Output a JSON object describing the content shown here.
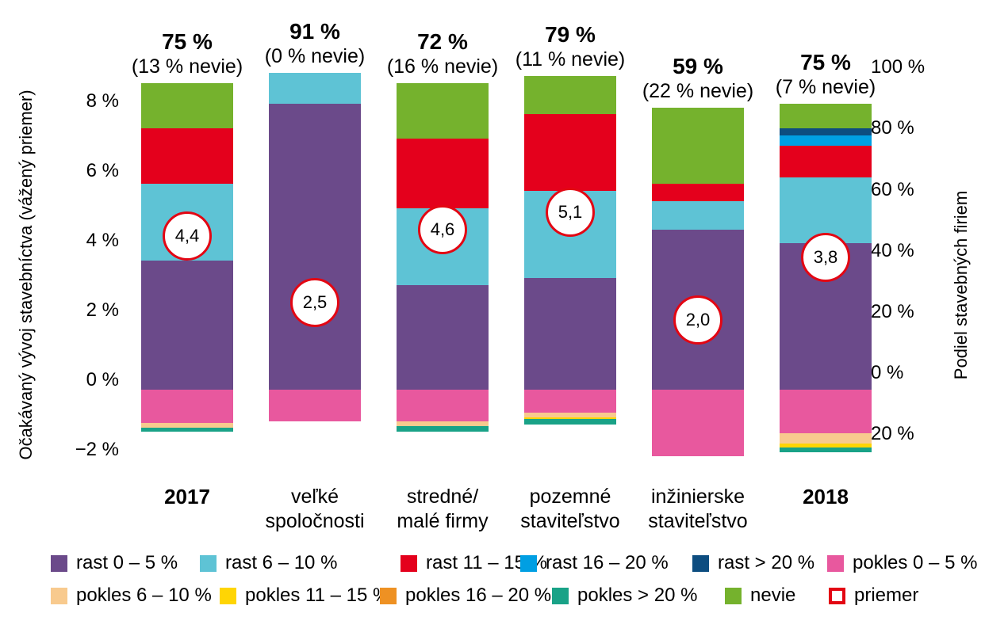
{
  "axes": {
    "left": {
      "title": "Očakávaný vývoj stavebníctva (vážený priemer)",
      "ticks": [
        "8 %",
        "6 %",
        "4 %",
        "2 %",
        "0 %",
        "−2 %"
      ]
    },
    "right": {
      "title": "Podiel stavebných firiem",
      "ticks": [
        "100 %",
        "80 %",
        "60 %",
        "40 %",
        "20 %",
        "0 %",
        "20 %"
      ]
    }
  },
  "colors": {
    "rast_0_5": "#6b4a8a",
    "rast_6_10": "#5ec3d5",
    "rast_11_15": "#e4001c",
    "rast_16_20": "#009fe3",
    "rast_gt_20": "#0d4d80",
    "pokles_0_5": "#e8589e",
    "pokles_6_10": "#f8ca8e",
    "pokles_11_15": "#ffd504",
    "pokles_16_20": "#ee9123",
    "pokles_gt_20": "#19a287",
    "nevie": "#75b22d",
    "priemer_border": "#e30613"
  },
  "series_labels": {
    "rast_0_5": "rast 0 – 5 %",
    "rast_6_10": "rast 6 – 10 %",
    "rast_11_15": "rast 11 – 15 %",
    "rast_16_20": "rast 16 – 20 %",
    "rast_gt_20": "rast > 20 %",
    "pokles_0_5": "pokles 0 – 5 %",
    "pokles_6_10": "pokles 6 – 10 %",
    "pokles_11_15": "pokles 11 – 15 %",
    "pokles_16_20": "pokles 16 – 20 %",
    "pokles_gt_20": "pokles > 20 %",
    "nevie": "nevie",
    "priemer": "priemer"
  },
  "legend": {
    "rows": [
      [
        "rast_0_5",
        "rast_6_10",
        "rast_11_15",
        "rast_16_20",
        "rast_gt_20",
        "pokles_0_5"
      ],
      [
        "pokles_6_10",
        "pokles_11_15",
        "pokles_16_20",
        "pokles_gt_20",
        "nevie",
        "priemer"
      ]
    ]
  },
  "chart_data": {
    "type": "stacked-bar-diverging",
    "unit_bars": "percent of construction firms (right axis)",
    "unit_averages": "weighted average expected growth % (left axis)",
    "categories": [
      [
        "2017"
      ],
      [
        "veľké",
        "spoločnosti"
      ],
      [
        "stredné/",
        "malé firmy"
      ],
      [
        "pozemné",
        "staviteľstvo"
      ],
      [
        "inžinierske",
        "staviteľstvo"
      ],
      [
        "2018"
      ]
    ],
    "category_bold": [
      true,
      false,
      false,
      false,
      false,
      true
    ],
    "totals": [
      "75 %",
      "91 %",
      "72 %",
      "79 %",
      "59 %",
      "75 %"
    ],
    "nevie_notes": [
      "(13 % nevie)",
      "(0 % nevie)",
      "(16 % nevie)",
      "(11 % nevie)",
      "(22 % nevie)",
      "(7 % nevie)"
    ],
    "averages": [
      4.4,
      2.5,
      4.6,
      5.1,
      2.0,
      3.8
    ],
    "averages_display": [
      "4,4",
      "2,5",
      "4,6",
      "5,1",
      "2,0",
      "3,8"
    ],
    "growth_series": [
      {
        "key": "rast_0_5",
        "values": [
          37,
          82,
          30,
          32,
          46,
          42
        ]
      },
      {
        "key": "rast_6_10",
        "values": [
          22,
          9,
          22,
          25,
          8,
          19
        ]
      },
      {
        "key": "rast_11_15",
        "values": [
          16,
          0,
          20,
          22,
          5,
          9
        ]
      },
      {
        "key": "rast_16_20",
        "values": [
          0,
          0,
          0,
          0,
          0,
          3
        ]
      },
      {
        "key": "rast_gt_20",
        "values": [
          0,
          0,
          0,
          0,
          0,
          2
        ]
      },
      {
        "key": "nevie",
        "values": [
          13,
          0,
          16,
          11,
          22,
          7
        ]
      }
    ],
    "decline_series": [
      {
        "key": "pokles_0_5",
        "values": [
          9.5,
          9,
          9,
          6.5,
          19,
          12.5
        ]
      },
      {
        "key": "pokles_6_10",
        "values": [
          1.5,
          0,
          1.5,
          1.5,
          0,
          3
        ]
      },
      {
        "key": "pokles_11_15",
        "values": [
          0,
          0,
          0,
          0.5,
          0,
          1
        ]
      },
      {
        "key": "pokles_16_20",
        "values": [
          0,
          0,
          0,
          0,
          0,
          0
        ]
      },
      {
        "key": "pokles_gt_20",
        "values": [
          1,
          0,
          1.5,
          1.5,
          0,
          1.5
        ]
      }
    ],
    "axis_left_range": [
      -2,
      8
    ],
    "axis_right_range_display": "100 % … 0 % … 20 % (mirrored below zero)",
    "grid": false,
    "legend_position": "bottom"
  }
}
